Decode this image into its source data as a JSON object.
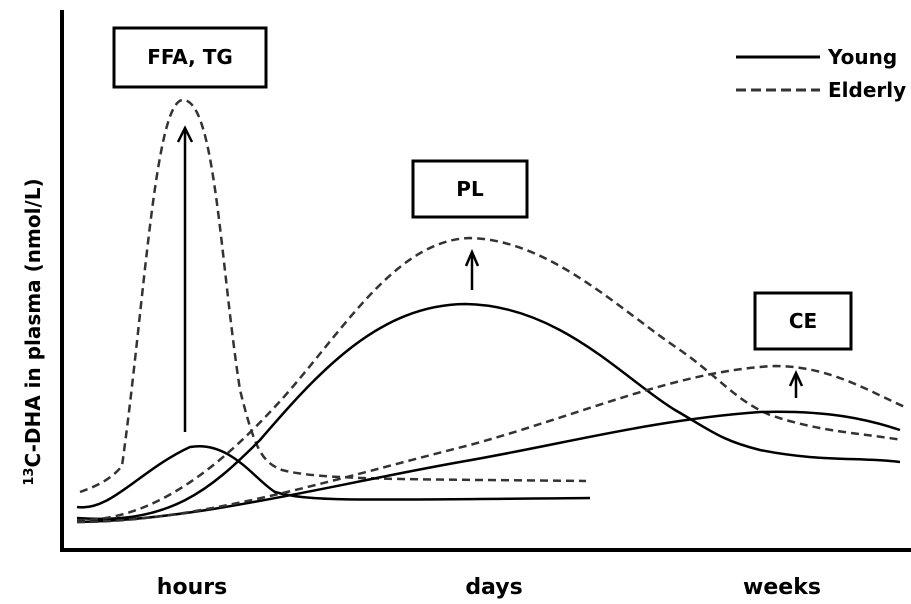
{
  "y_axis_label_superscript": "13",
  "y_axis_label_rest": "C-DHA in plasma (nmol/L)",
  "x_ticks": [
    "hours",
    "days",
    "weeks"
  ],
  "boxes": {
    "ffa_tg": "FFA, TG",
    "pl": "PL",
    "ce": "CE"
  },
  "legend": {
    "young": "Young",
    "elderly": "Elderly"
  },
  "colors": {
    "line": "#000000",
    "dashed": "#333333",
    "background": "#ffffff"
  }
}
